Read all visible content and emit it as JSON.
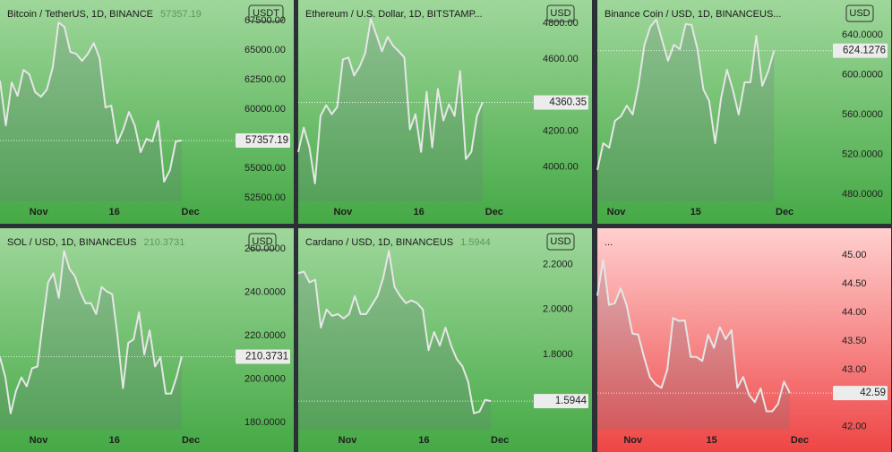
{
  "chart_data": [
    {
      "type": "line",
      "title": "Bitcoin / TetherUS, 1D, BINANCE",
      "header_value": "57357.19",
      "currency": "USDT",
      "last_label": "57357.19",
      "background": [
        "#9fd79b",
        "#45a945"
      ],
      "line_color": "#e6e6e6",
      "values": [
        62424,
        58636,
        62273,
        61136,
        63333,
        62955,
        61439,
        61061,
        61667,
        63561,
        67348,
        66970,
        64848,
        64697,
        64091,
        64697,
        65606,
        64318,
        60152,
        60303,
        57121,
        58258,
        59773,
        58636,
        56364,
        57500,
        57273,
        59015,
        53864,
        54848,
        57273,
        57357.19
      ],
      "xlim": [
        0,
        40.5
      ],
      "xticks": [
        {
          "value": 6.6,
          "label": "Nov"
        },
        {
          "value": 19.5,
          "label": "16"
        },
        {
          "value": 32.5,
          "label": "Dec"
        }
      ],
      "ylim": [
        52200,
        69250
      ],
      "yticks": [
        {
          "value": 52500,
          "label": "52500.00"
        },
        {
          "value": 55000,
          "label": "55000.00"
        },
        {
          "value": 60000,
          "label": "60000.00"
        },
        {
          "value": 62500,
          "label": "62500.00"
        },
        {
          "value": 65000,
          "label": "65000.00"
        },
        {
          "value": 67500,
          "label": "67500.00"
        }
      ]
    },
    {
      "type": "line",
      "title": "Ethereum / U.S. Dollar, 1D, BITSTAMP...",
      "currency": "USD",
      "last_label": "4360.35",
      "background": [
        "#9fd79b",
        "#45a945"
      ],
      "line_color": "#e6e6e6",
      "values": [
        4085,
        4220,
        4110,
        3910,
        4285,
        4345,
        4295,
        4335,
        4600,
        4610,
        4510,
        4560,
        4635,
        4825,
        4735,
        4645,
        4725,
        4675,
        4645,
        4610,
        4210,
        4295,
        4085,
        4420,
        4110,
        4435,
        4260,
        4350,
        4285,
        4535,
        4045,
        4085,
        4285,
        4360.35
      ],
      "xlim": [
        0,
        42.5
      ],
      "xticks": [
        {
          "value": 8,
          "label": "Nov"
        },
        {
          "value": 21.6,
          "label": "16"
        },
        {
          "value": 35.1,
          "label": "Dec"
        }
      ],
      "ylim": [
        3810,
        4930
      ],
      "yticks": [
        {
          "value": 4000,
          "label": "4000.00"
        },
        {
          "value": 4200,
          "label": "4200.00"
        },
        {
          "value": 4600,
          "label": "4600.00"
        },
        {
          "value": 4800,
          "label": "4800.00"
        }
      ]
    },
    {
      "type": "line",
      "title": "Binance Coin / USD, 1D, BINANCEUS...",
      "currency": "USD",
      "last_label": "624.1276",
      "background": [
        "#9fd79b",
        "#45a945"
      ],
      "line_color": "#e6e6e6",
      "values": [
        504.3,
        531.2,
        526.7,
        553.7,
        558.2,
        569,
        560,
        589.7,
        630.1,
        648.1,
        655.3,
        634.6,
        614,
        630.1,
        625.6,
        650.8,
        649.9,
        625.6,
        585.2,
        573.5,
        531.2,
        576.2,
        605,
        585.2,
        560,
        592.4,
        592.4,
        639.1,
        588.8,
        603.2,
        624.1276
      ],
      "xlim": [
        0,
        40.3
      ],
      "xticks": [
        {
          "value": 3.2,
          "label": "Nov"
        },
        {
          "value": 16.7,
          "label": "15"
        },
        {
          "value": 31.8,
          "label": "Dec"
        }
      ],
      "ylim": [
        472.8,
        675
      ],
      "yticks": [
        {
          "value": 480,
          "label": "480.0000"
        },
        {
          "value": 520,
          "label": "520.0000"
        },
        {
          "value": 560,
          "label": "560.0000"
        },
        {
          "value": 600,
          "label": "600.0000"
        },
        {
          "value": 640,
          "label": "640.0000"
        }
      ]
    },
    {
      "type": "line",
      "title": "SOL / USD, 1D, BINANCEUS",
      "header_value": "210.3731",
      "currency": "USD",
      "last_label": "210.3731",
      "background": [
        "#9fd79b",
        "#45a945"
      ],
      "line_color": "#e6e6e6",
      "values": [
        210,
        200.8,
        184.2,
        194.6,
        200.8,
        196.7,
        205,
        205.8,
        225.8,
        244.6,
        248.8,
        237.5,
        259.2,
        250.8,
        247.5,
        240.4,
        235,
        235,
        230,
        242.5,
        240.4,
        239.2,
        219.6,
        195.8,
        216.7,
        218.3,
        230.8,
        211.3,
        222.5,
        205.8,
        210,
        193.3,
        193.3,
        200.8,
        210.3731
      ],
      "xlim": [
        0,
        44.4
      ],
      "xticks": [
        {
          "value": 7.2,
          "label": "Nov"
        },
        {
          "value": 21.4,
          "label": "16"
        },
        {
          "value": 35.7,
          "label": "Dec"
        }
      ],
      "ylim": [
        176.7,
        269.6
      ],
      "yticks": [
        {
          "value": 180,
          "label": "180.0000"
        },
        {
          "value": 200,
          "label": "200.0000"
        },
        {
          "value": 220,
          "label": "220.0000"
        },
        {
          "value": 240,
          "label": "240.0000"
        },
        {
          "value": 260,
          "label": "260.0000"
        }
      ]
    },
    {
      "type": "line",
      "title": "Cardano / USD, 1D, BINANCEUS",
      "header_value": "1.5944",
      "currency": "USD",
      "last_label": "1.5944",
      "background": [
        "#9fd79b",
        "#45a945"
      ],
      "line_color": "#e6e6e6",
      "values": [
        2.16,
        2.168,
        2.12,
        2.132,
        1.92,
        2.0,
        1.972,
        1.98,
        1.96,
        1.98,
        2.06,
        1.98,
        1.98,
        2.02,
        2.06,
        2.14,
        2.26,
        2.1,
        2.06,
        2.028,
        2.04,
        2.028,
        2.0,
        1.82,
        1.9,
        1.84,
        1.92,
        1.84,
        1.78,
        1.748,
        1.68,
        1.54,
        1.548,
        1.6,
        1.5944
      ],
      "xlim": [
        0,
        41.9
      ],
      "xticks": [
        {
          "value": 8.7,
          "label": "Nov"
        },
        {
          "value": 22.2,
          "label": "16"
        },
        {
          "value": 35.6,
          "label": "Dec"
        }
      ],
      "ylim": [
        1.468,
        2.36
      ],
      "yticks": [
        {
          "value": 1.8,
          "label": "1.8000"
        },
        {
          "value": 2.0,
          "label": "2.0000"
        },
        {
          "value": 2.2,
          "label": "2.2000"
        }
      ]
    },
    {
      "type": "line",
      "title": "...",
      "last_label": "42.59",
      "background": [
        "#ffcfcf",
        "#ef4545"
      ],
      "line_color": "#e6e6e6",
      "values": [
        44.29,
        44.92,
        44.13,
        44.16,
        44.42,
        44.13,
        43.63,
        43.61,
        43.22,
        42.87,
        42.74,
        42.68,
        43.0,
        43.9,
        43.85,
        43.86,
        43.22,
        43.22,
        43.15,
        43.61,
        43.38,
        43.74,
        43.53,
        43.69,
        42.68,
        42.87,
        42.56,
        42.43,
        42.67,
        42.27,
        42.27,
        42.4,
        42.79,
        42.59
      ],
      "xlim": [
        0,
        40.7
      ],
      "xticks": [
        {
          "value": 6.1,
          "label": "Nov"
        },
        {
          "value": 19.6,
          "label": "15"
        },
        {
          "value": 34.7,
          "label": "Dec"
        }
      ],
      "ylim": [
        41.95,
        45.47
      ],
      "yticks": [
        {
          "value": 42,
          "label": "42.00"
        },
        {
          "value": 43,
          "label": "43.00"
        },
        {
          "value": 43.5,
          "label": "43.50"
        },
        {
          "value": 44,
          "label": "44.00"
        },
        {
          "value": 44.5,
          "label": "44.50"
        },
        {
          "value": 45,
          "label": "45.00"
        }
      ]
    }
  ]
}
